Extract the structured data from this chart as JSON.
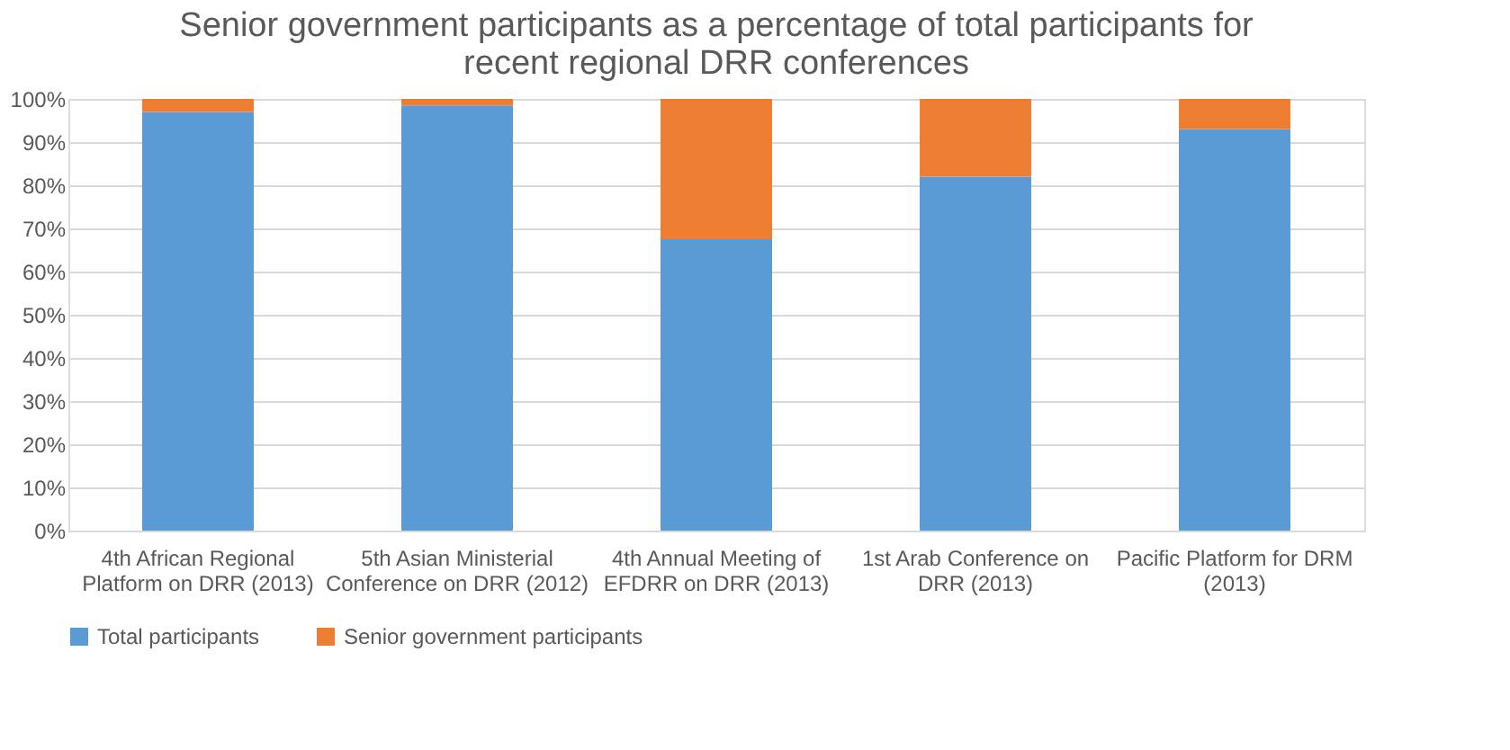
{
  "chart_data": {
    "type": "bar",
    "stacked": true,
    "title": "Senior government participants as a percentage of total participants for recent regional DRR conferences",
    "categories": [
      "4th African Regional Platform on DRR (2013)",
      "5th Asian Ministerial Conference on DRR (2012)",
      "4th Annual Meeting of EFDRR on DRR (2013)",
      "1st Arab Conference on DRR (2013)",
      "Pacific Platform for DRM (2013)"
    ],
    "series": [
      {
        "name": "Total participants",
        "color": "#5b9bd5",
        "values": [
          97,
          98.5,
          67.5,
          82,
          93
        ]
      },
      {
        "name": "Senior government participants",
        "color": "#ed7d31",
        "values": [
          3,
          1.5,
          32.5,
          18,
          7
        ]
      }
    ],
    "ylim": [
      0,
      100
    ],
    "yticks": [
      {
        "value": 0,
        "label": "0%"
      },
      {
        "value": 10,
        "label": "10%"
      },
      {
        "value": 20,
        "label": "20%"
      },
      {
        "value": 30,
        "label": "30%"
      },
      {
        "value": 40,
        "label": "40%"
      },
      {
        "value": 50,
        "label": "50%"
      },
      {
        "value": 60,
        "label": "60%"
      },
      {
        "value": 70,
        "label": "70%"
      },
      {
        "value": 80,
        "label": "80%"
      },
      {
        "value": 90,
        "label": "90%"
      },
      {
        "value": 100,
        "label": "100%"
      }
    ],
    "grid": "y",
    "legend": "bottom"
  }
}
